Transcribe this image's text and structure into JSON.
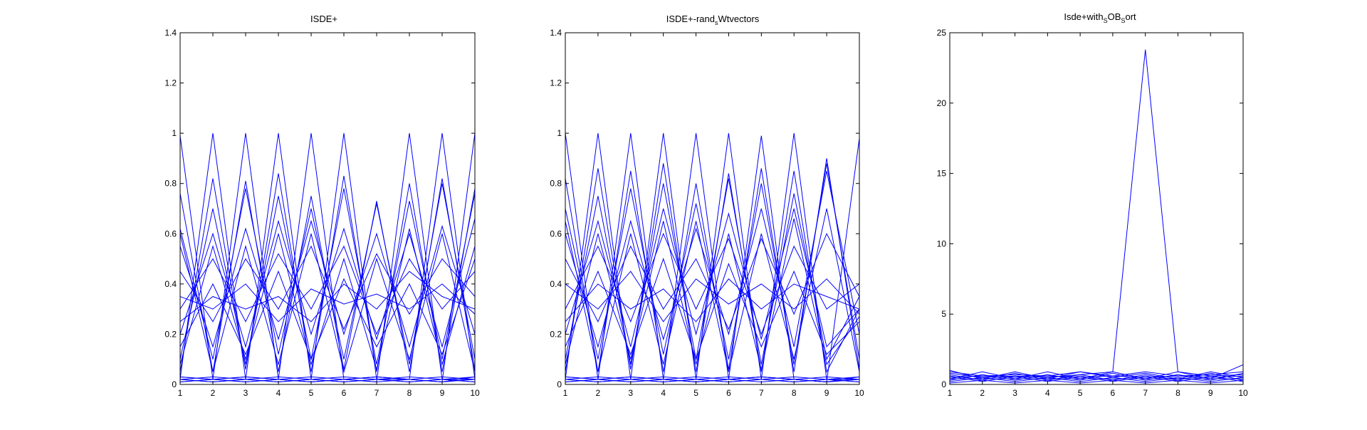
{
  "figure": {
    "background": "#ffffff",
    "line_color": "#0000ff",
    "axis_color": "#000000"
  },
  "chart_data": [
    {
      "type": "line",
      "title": "ISDE+",
      "xlabel": "",
      "ylabel": "",
      "xlim": [
        1,
        10
      ],
      "ylim": [
        0,
        1.4
      ],
      "xticks": [
        1,
        2,
        3,
        4,
        5,
        6,
        7,
        8,
        9,
        10
      ],
      "yticks": [
        0,
        0.2,
        0.4,
        0.6,
        0.8,
        1,
        1.2,
        1.4
      ],
      "ytick_labels": [
        "0",
        "0.2",
        "0.4",
        "0.6",
        "0.8",
        "1",
        "1.2",
        "1.4"
      ],
      "grid": false,
      "x": [
        1,
        2,
        3,
        4,
        5,
        6,
        7,
        8,
        9,
        10
      ],
      "series": [
        {
          "values": [
            0.99,
            0.02,
            0.01,
            0.02,
            0.01,
            0.02,
            0.03,
            0.02,
            0.01,
            0.03
          ]
        },
        {
          "values": [
            0.02,
            1.0,
            0.02,
            0.01,
            0.02,
            0.03,
            0.02,
            0.01,
            0.02,
            0.02
          ]
        },
        {
          "values": [
            0.03,
            0.02,
            1.0,
            0.02,
            0.01,
            0.02,
            0.03,
            0.02,
            0.01,
            0.02
          ]
        },
        {
          "values": [
            0.02,
            0.01,
            0.02,
            1.0,
            0.02,
            0.01,
            0.02,
            0.03,
            0.02,
            0.01
          ]
        },
        {
          "values": [
            0.01,
            0.02,
            0.03,
            0.02,
            1.0,
            0.02,
            0.01,
            0.02,
            0.03,
            0.02
          ]
        },
        {
          "values": [
            0.02,
            0.03,
            0.02,
            0.01,
            0.02,
            1.0,
            0.02,
            0.01,
            0.02,
            0.03
          ]
        },
        {
          "values": [
            0.03,
            0.02,
            0.01,
            0.02,
            0.03,
            0.02,
            0.01,
            1.0,
            0.02,
            0.01
          ]
        },
        {
          "values": [
            0.02,
            0.01,
            0.02,
            0.03,
            0.02,
            0.01,
            0.02,
            0.02,
            1.0,
            0.02
          ]
        },
        {
          "values": [
            0.01,
            0.02,
            0.03,
            0.02,
            0.01,
            0.02,
            0.03,
            0.02,
            0.01,
            1.0
          ]
        },
        {
          "values": [
            0.76,
            0.05,
            0.81,
            0.05,
            0.75,
            0.06,
            0.73,
            0.05,
            0.82,
            0.06
          ]
        },
        {
          "values": [
            0.05,
            0.82,
            0.06,
            0.84,
            0.05,
            0.83,
            0.05,
            0.8,
            0.05,
            0.78
          ]
        },
        {
          "values": [
            0.62,
            0.1,
            0.78,
            0.12,
            0.7,
            0.1,
            0.72,
            0.08,
            0.8,
            0.1
          ]
        },
        {
          "values": [
            0.1,
            0.7,
            0.08,
            0.75,
            0.1,
            0.78,
            0.08,
            0.73,
            0.1,
            0.76
          ]
        },
        {
          "values": [
            0.55,
            0.15,
            0.62,
            0.18,
            0.65,
            0.2,
            0.6,
            0.15,
            0.63,
            0.2
          ]
        },
        {
          "values": [
            0.2,
            0.6,
            0.15,
            0.65,
            0.2,
            0.62,
            0.18,
            0.6,
            0.15,
            0.66
          ]
        },
        {
          "values": [
            0.45,
            0.25,
            0.5,
            0.3,
            0.55,
            0.22,
            0.52,
            0.28,
            0.5,
            0.35
          ]
        },
        {
          "values": [
            0.3,
            0.5,
            0.25,
            0.52,
            0.3,
            0.55,
            0.2,
            0.5,
            0.3,
            0.45
          ]
        },
        {
          "values": [
            0.35,
            0.3,
            0.4,
            0.25,
            0.38,
            0.32,
            0.36,
            0.3,
            0.4,
            0.28
          ]
        },
        {
          "values": [
            0.15,
            0.4,
            0.12,
            0.45,
            0.1,
            0.42,
            0.15,
            0.4,
            0.12,
            0.5
          ]
        },
        {
          "values": [
            0.6,
            0.05,
            0.55,
            0.08,
            0.6,
            0.05,
            0.5,
            0.1,
            0.6,
            0.05
          ]
        },
        {
          "values": [
            0.25,
            0.35,
            0.3,
            0.35,
            0.25,
            0.4,
            0.3,
            0.45,
            0.35,
            0.3
          ]
        },
        {
          "values": [
            0.08,
            0.55,
            0.1,
            0.6,
            0.08,
            0.5,
            0.06,
            0.62,
            0.08,
            0.55
          ]
        }
      ]
    },
    {
      "type": "line",
      "title": "ISDE+-rand_sWtvectors",
      "title_base": "ISDE+-rand",
      "title_sub": "s",
      "title_tail": "Wtvectors",
      "xlabel": "",
      "ylabel": "",
      "xlim": [
        1,
        10
      ],
      "ylim": [
        0,
        1.4
      ],
      "xticks": [
        1,
        2,
        3,
        4,
        5,
        6,
        7,
        8,
        9,
        10
      ],
      "yticks": [
        0,
        0.2,
        0.4,
        0.6,
        0.8,
        1,
        1.2,
        1.4
      ],
      "ytick_labels": [
        "0",
        "0.2",
        "0.4",
        "0.6",
        "0.8",
        "1",
        "1.2",
        "1.4"
      ],
      "grid": false,
      "x": [
        1,
        2,
        3,
        4,
        5,
        6,
        7,
        8,
        9,
        10
      ],
      "series": [
        {
          "values": [
            1.0,
            0.02,
            0.01,
            0.02,
            0.01,
            0.02,
            0.03,
            0.02,
            0.01,
            0.03
          ]
        },
        {
          "values": [
            0.02,
            1.0,
            0.02,
            0.01,
            0.02,
            0.03,
            0.02,
            0.01,
            0.02,
            0.02
          ]
        },
        {
          "values": [
            0.03,
            0.02,
            1.0,
            0.02,
            0.01,
            0.02,
            0.03,
            0.02,
            0.01,
            0.02
          ]
        },
        {
          "values": [
            0.02,
            0.01,
            0.02,
            1.0,
            0.02,
            0.01,
            0.02,
            0.03,
            0.02,
            0.01
          ]
        },
        {
          "values": [
            0.01,
            0.02,
            0.03,
            0.02,
            1.0,
            0.02,
            0.01,
            0.02,
            0.03,
            0.02
          ]
        },
        {
          "values": [
            0.02,
            0.03,
            0.02,
            0.01,
            0.02,
            1.0,
            0.02,
            0.01,
            0.02,
            0.03
          ]
        },
        {
          "values": [
            0.03,
            0.02,
            0.01,
            0.02,
            0.03,
            0.02,
            0.99,
            0.02,
            0.01,
            0.02
          ]
        },
        {
          "values": [
            0.02,
            0.01,
            0.02,
            0.03,
            0.02,
            0.01,
            0.02,
            1.0,
            0.02,
            0.01
          ]
        },
        {
          "values": [
            0.01,
            0.02,
            0.03,
            0.02,
            0.01,
            0.02,
            0.03,
            0.02,
            0.01,
            0.98
          ]
        },
        {
          "values": [
            0.82,
            0.05,
            0.85,
            0.05,
            0.8,
            0.06,
            0.86,
            0.05,
            0.9,
            0.06
          ]
        },
        {
          "values": [
            0.05,
            0.86,
            0.06,
            0.88,
            0.05,
            0.84,
            0.05,
            0.85,
            0.05,
            0.3
          ]
        },
        {
          "values": [
            0.7,
            0.1,
            0.78,
            0.12,
            0.72,
            0.1,
            0.8,
            0.08,
            0.88,
            0.1
          ]
        },
        {
          "values": [
            0.1,
            0.75,
            0.08,
            0.8,
            0.1,
            0.82,
            0.08,
            0.76,
            0.1,
            0.35
          ]
        },
        {
          "values": [
            0.6,
            0.15,
            0.65,
            0.18,
            0.62,
            0.2,
            0.7,
            0.15,
            0.85,
            0.2
          ]
        },
        {
          "values": [
            0.2,
            0.65,
            0.15,
            0.7,
            0.2,
            0.68,
            0.18,
            0.7,
            0.15,
            0.3
          ]
        },
        {
          "values": [
            0.5,
            0.25,
            0.55,
            0.3,
            0.5,
            0.22,
            0.58,
            0.28,
            0.6,
            0.35
          ]
        },
        {
          "values": [
            0.3,
            0.55,
            0.25,
            0.6,
            0.3,
            0.58,
            0.2,
            0.55,
            0.3,
            0.4
          ]
        },
        {
          "values": [
            0.4,
            0.3,
            0.45,
            0.25,
            0.42,
            0.32,
            0.4,
            0.3,
            0.42,
            0.28
          ]
        },
        {
          "values": [
            0.15,
            0.45,
            0.12,
            0.5,
            0.1,
            0.48,
            0.15,
            0.45,
            0.12,
            0.25
          ]
        },
        {
          "values": [
            0.65,
            0.05,
            0.6,
            0.08,
            0.65,
            0.05,
            0.6,
            0.1,
            0.7,
            0.05
          ]
        },
        {
          "values": [
            0.25,
            0.4,
            0.3,
            0.38,
            0.25,
            0.42,
            0.3,
            0.4,
            0.35,
            0.3
          ]
        },
        {
          "values": [
            0.08,
            0.6,
            0.1,
            0.65,
            0.08,
            0.6,
            0.06,
            0.66,
            0.08,
            0.27
          ]
        }
      ]
    },
    {
      "type": "line",
      "title": "Isde+with_SOB_Sort",
      "title_base": "Isde+with",
      "title_sub": "S",
      "title_mid": "OB",
      "title_sub2": "S",
      "title_tail": "ort",
      "xlabel": "",
      "ylabel": "",
      "xlim": [
        1,
        10
      ],
      "ylim": [
        0,
        25
      ],
      "xticks": [
        1,
        2,
        3,
        4,
        5,
        6,
        7,
        8,
        9,
        10
      ],
      "yticks": [
        0,
        5,
        10,
        15,
        20,
        25
      ],
      "ytick_labels": [
        "0",
        "5",
        "10",
        "15",
        "20",
        "25"
      ],
      "grid": false,
      "x": [
        1,
        2,
        3,
        4,
        5,
        6,
        7,
        8,
        9,
        10
      ],
      "series": [
        {
          "values": [
            0.8,
            0.5,
            0.6,
            0.5,
            0.7,
            0.9,
            23.8,
            0.9,
            0.6,
            0.7
          ]
        },
        {
          "values": [
            1.0,
            0.4,
            0.9,
            0.4,
            0.9,
            0.5,
            0.8,
            0.4,
            0.9,
            0.5
          ]
        },
        {
          "values": [
            0.4,
            0.9,
            0.4,
            0.9,
            0.4,
            0.9,
            0.4,
            0.9,
            0.4,
            1.4
          ]
        },
        {
          "values": [
            0.7,
            0.3,
            0.8,
            0.3,
            0.7,
            0.3,
            0.7,
            0.3,
            0.8,
            0.3
          ]
        },
        {
          "values": [
            0.3,
            0.7,
            0.3,
            0.7,
            0.3,
            0.8,
            0.3,
            0.7,
            0.3,
            0.8
          ]
        },
        {
          "values": [
            0.5,
            0.6,
            0.5,
            0.6,
            0.5,
            0.6,
            0.5,
            0.6,
            0.5,
            0.6
          ]
        },
        {
          "values": [
            0.2,
            0.5,
            0.2,
            0.5,
            0.2,
            0.5,
            0.2,
            0.5,
            0.2,
            0.5
          ]
        },
        {
          "values": [
            0.6,
            0.2,
            0.6,
            0.2,
            0.6,
            0.2,
            0.6,
            0.2,
            0.6,
            0.2
          ]
        },
        {
          "values": [
            0.9,
            0.6,
            0.7,
            0.6,
            0.9,
            0.6,
            0.9,
            0.6,
            0.7,
            0.9
          ]
        },
        {
          "values": [
            0.1,
            0.3,
            0.1,
            0.3,
            0.1,
            0.3,
            0.1,
            0.3,
            0.1,
            0.3
          ]
        },
        {
          "values": [
            0.4,
            0.4,
            0.4,
            0.4,
            0.4,
            0.4,
            0.4,
            0.4,
            0.4,
            0.4
          ]
        }
      ]
    }
  ]
}
